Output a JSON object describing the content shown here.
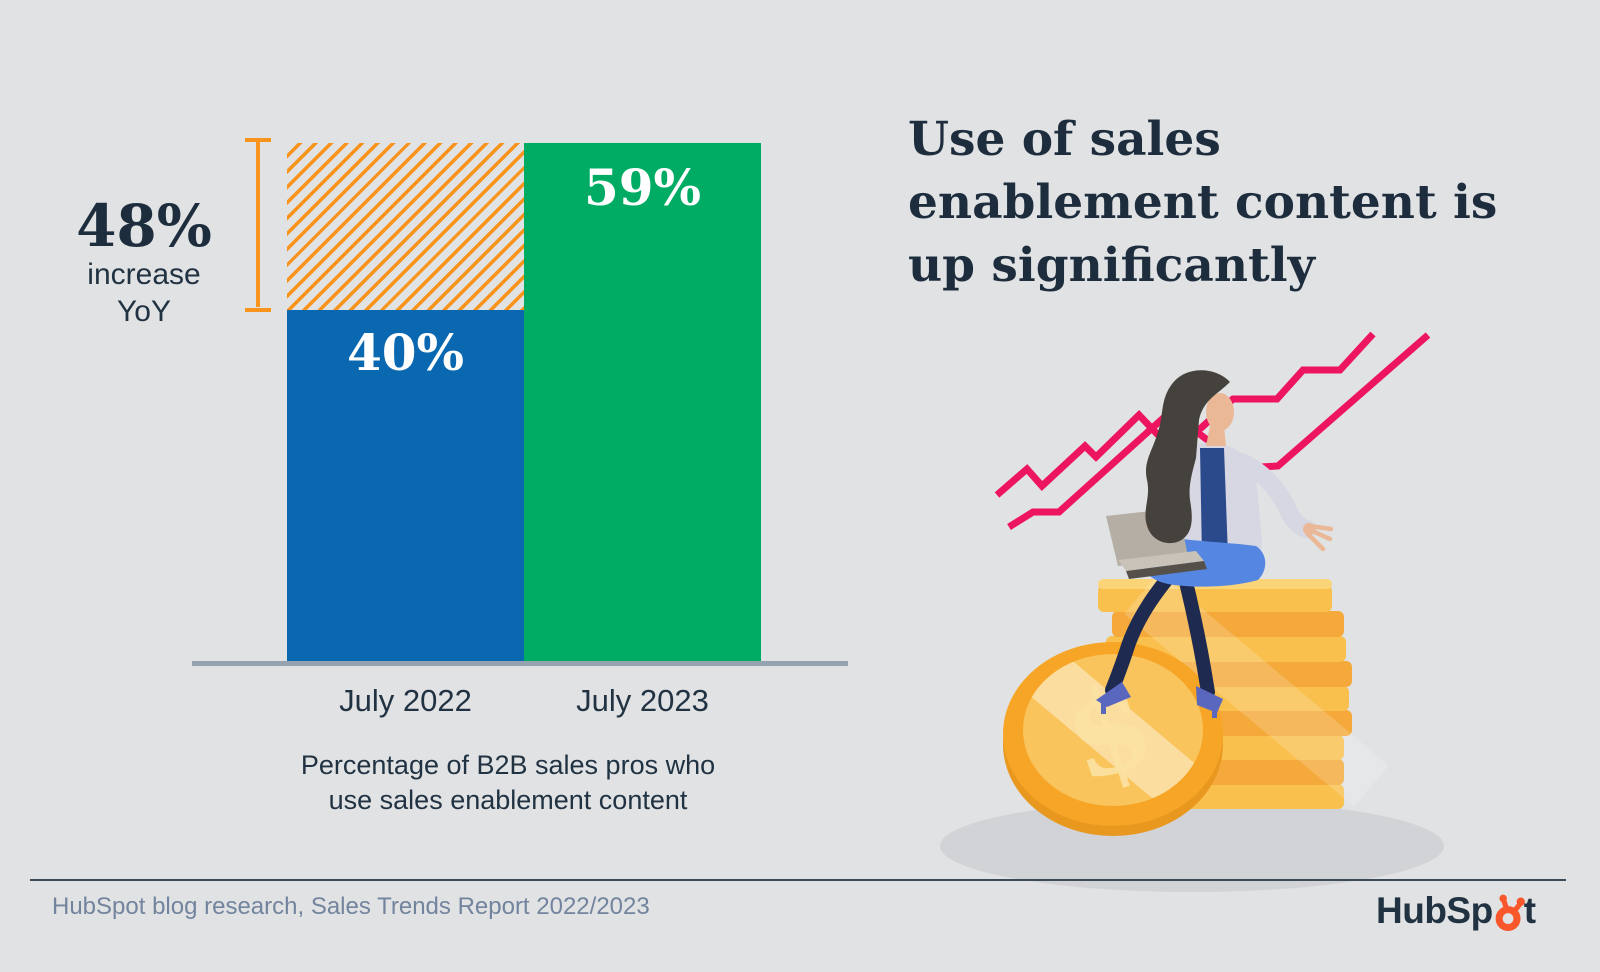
{
  "page": {
    "background": "#e1e2e3"
  },
  "chart_data": {
    "type": "bar",
    "categories": [
      "July 2022",
      "July 2023"
    ],
    "values": [
      40,
      59
    ],
    "value_labels": [
      "40%",
      "59%"
    ],
    "unit": "%",
    "bar_colors": [
      "#0a68b1",
      "#00ab63"
    ],
    "ylim": [
      0,
      59
    ],
    "grid": false,
    "legend": false,
    "caption_lines": [
      "Percentage of B2B sales pros who",
      "use sales enablement content"
    ],
    "annotation": {
      "value": "48%",
      "word1": "increase",
      "word2": "YoY",
      "bracket_color": "#f8941c",
      "delta_hatch_color": "#f8941c"
    },
    "baseline_color": "#95a2b0"
  },
  "headline": {
    "lines": [
      "Use of sales",
      "enablement content is",
      "up significantly"
    ],
    "color": "#1e2d3d"
  },
  "illustration": {
    "alt": "Businesswoman with laptop sitting on a stack of gold coins in front of rising pink trend lines",
    "dollar_sign": "$",
    "trend_line_color": "#ed1460",
    "coin_light": "#f9c04e",
    "coin_dark": "#f4a93a",
    "coin_face": "#f9c45c",
    "coin_ring": "#f7a527"
  },
  "footer": {
    "source_text": "HubSpot blog research, Sales Trends Report 2022/2023",
    "source_color": "#72849e",
    "rule_color": "#3d4b57",
    "logo": {
      "part1": "HubSp",
      "part2": "t",
      "color": "#213343",
      "sprocket_color": "#f8572b"
    }
  }
}
